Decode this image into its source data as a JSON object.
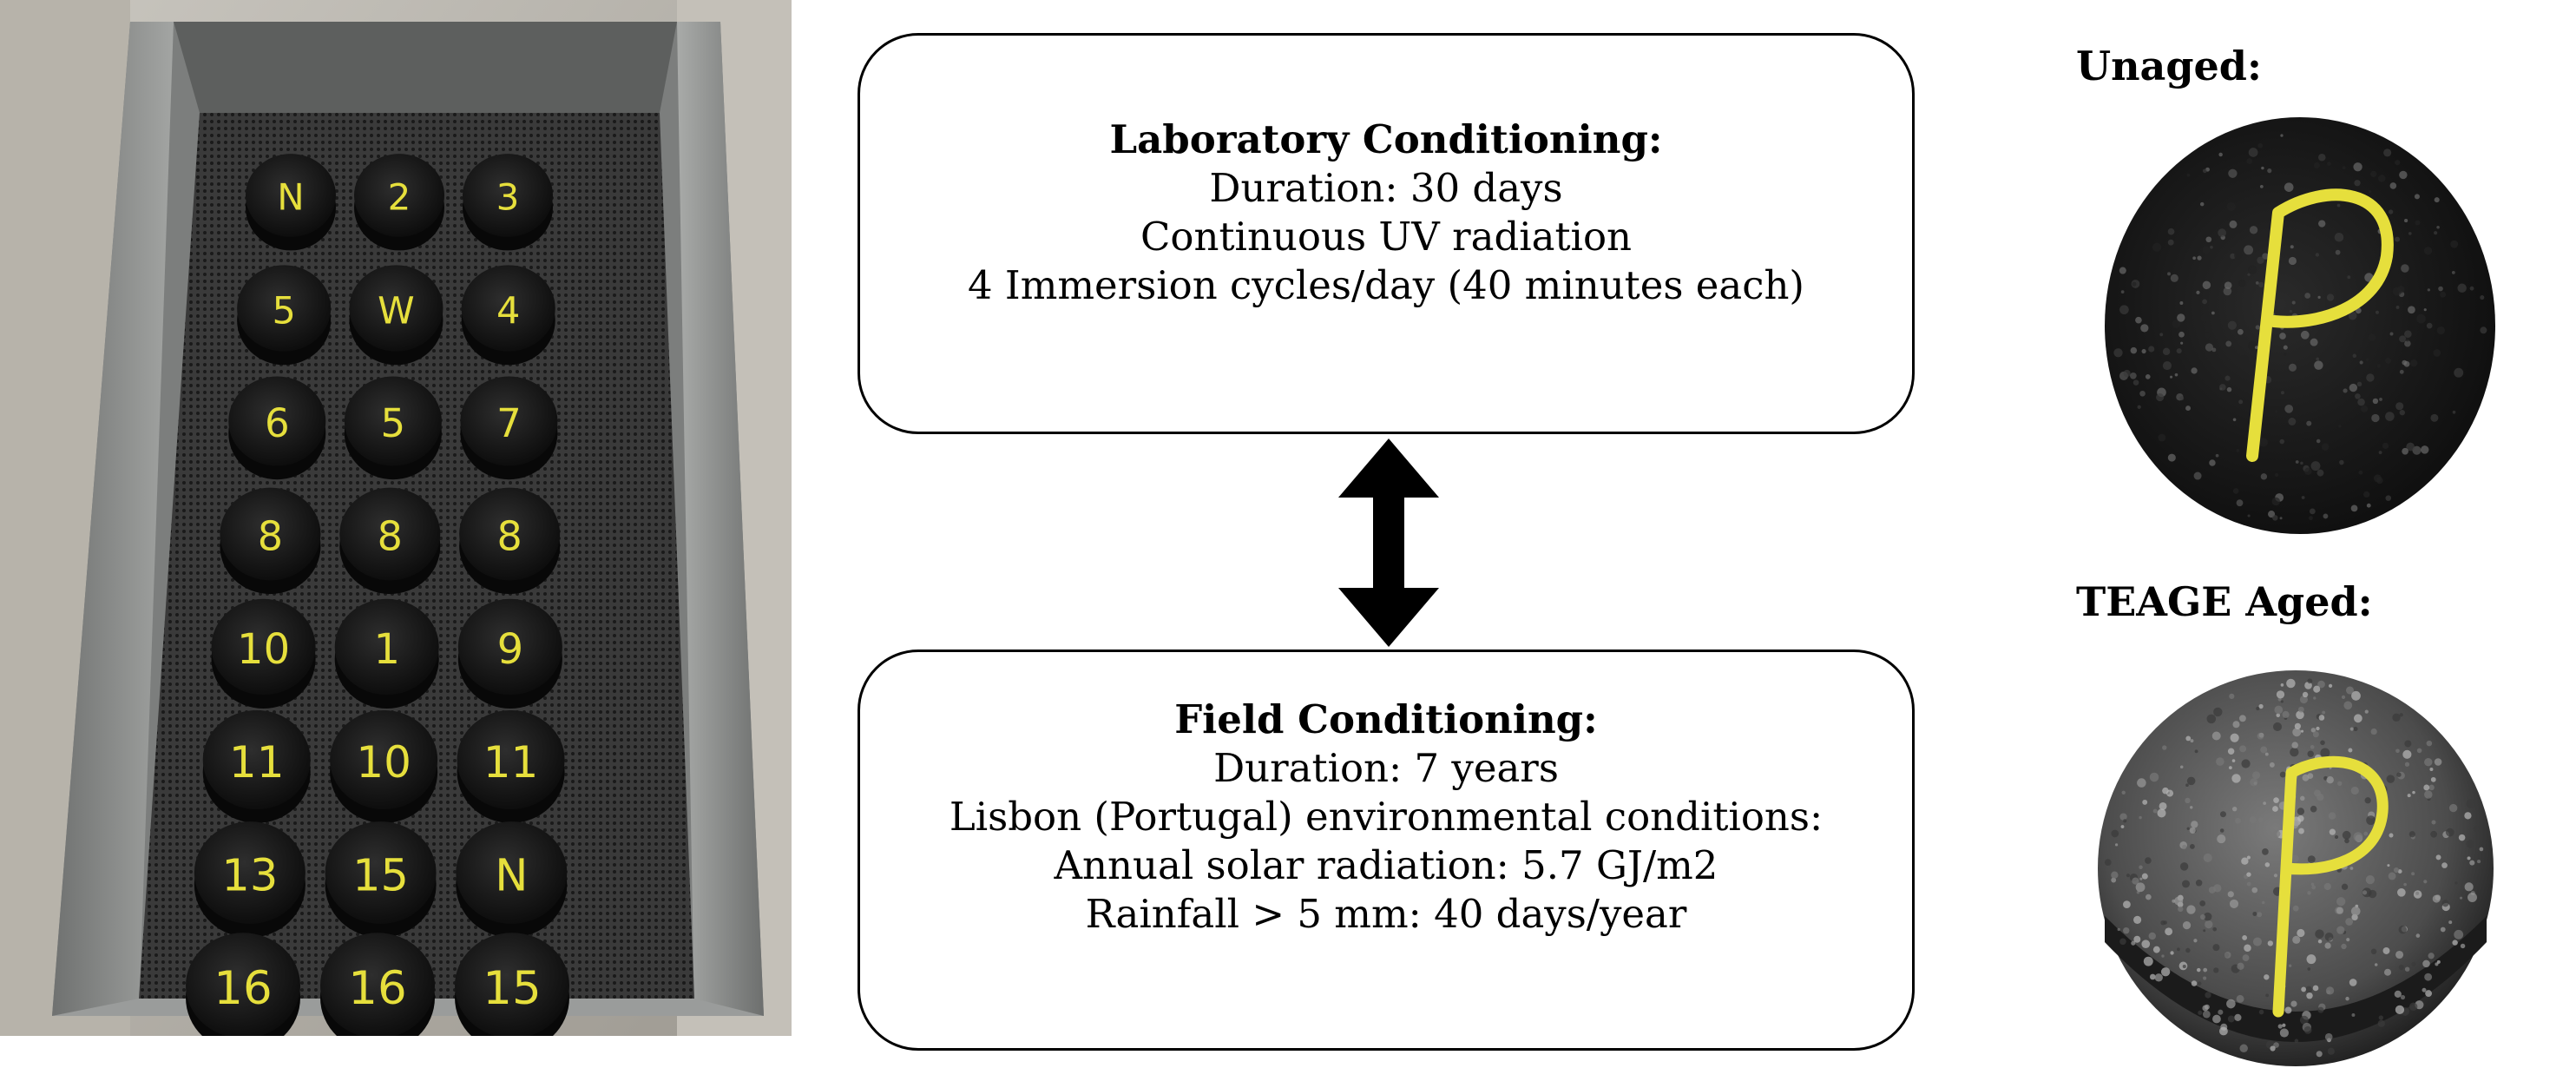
{
  "lab_box": {
    "title": "Laboratory Conditioning:",
    "lines": [
      "Duration: 30 days",
      "Continuous UV radiation",
      "4  Immersion cycles/day (40 minutes each)"
    ]
  },
  "field_box": {
    "title": "Field Conditioning:",
    "lines": [
      "Duration: 7 years",
      "Lisbon (Portugal) environmental conditions:",
      "Annual solar radiation: 5.7 GJ/m2",
      "Rainfall > 5 mm: 40 days/year"
    ]
  },
  "specimens": {
    "unaged_label": "Unaged:",
    "aged_label": "TEAGE Aged:",
    "mark": "P"
  },
  "tray": {
    "sample_labels": [
      "N",
      "2",
      "3",
      "5",
      "W",
      "4",
      "6",
      "5",
      "7",
      "8",
      "8",
      "8",
      "10",
      "1",
      "9",
      "11",
      "10",
      "11",
      "13",
      "15",
      "N",
      "16",
      "16",
      "15"
    ]
  },
  "colors": {
    "asphalt": "#1c1c1c",
    "yellow_paint": "#e6df3c",
    "metal": "#8d8f8e",
    "aged_surface": "#5a5a5a"
  }
}
